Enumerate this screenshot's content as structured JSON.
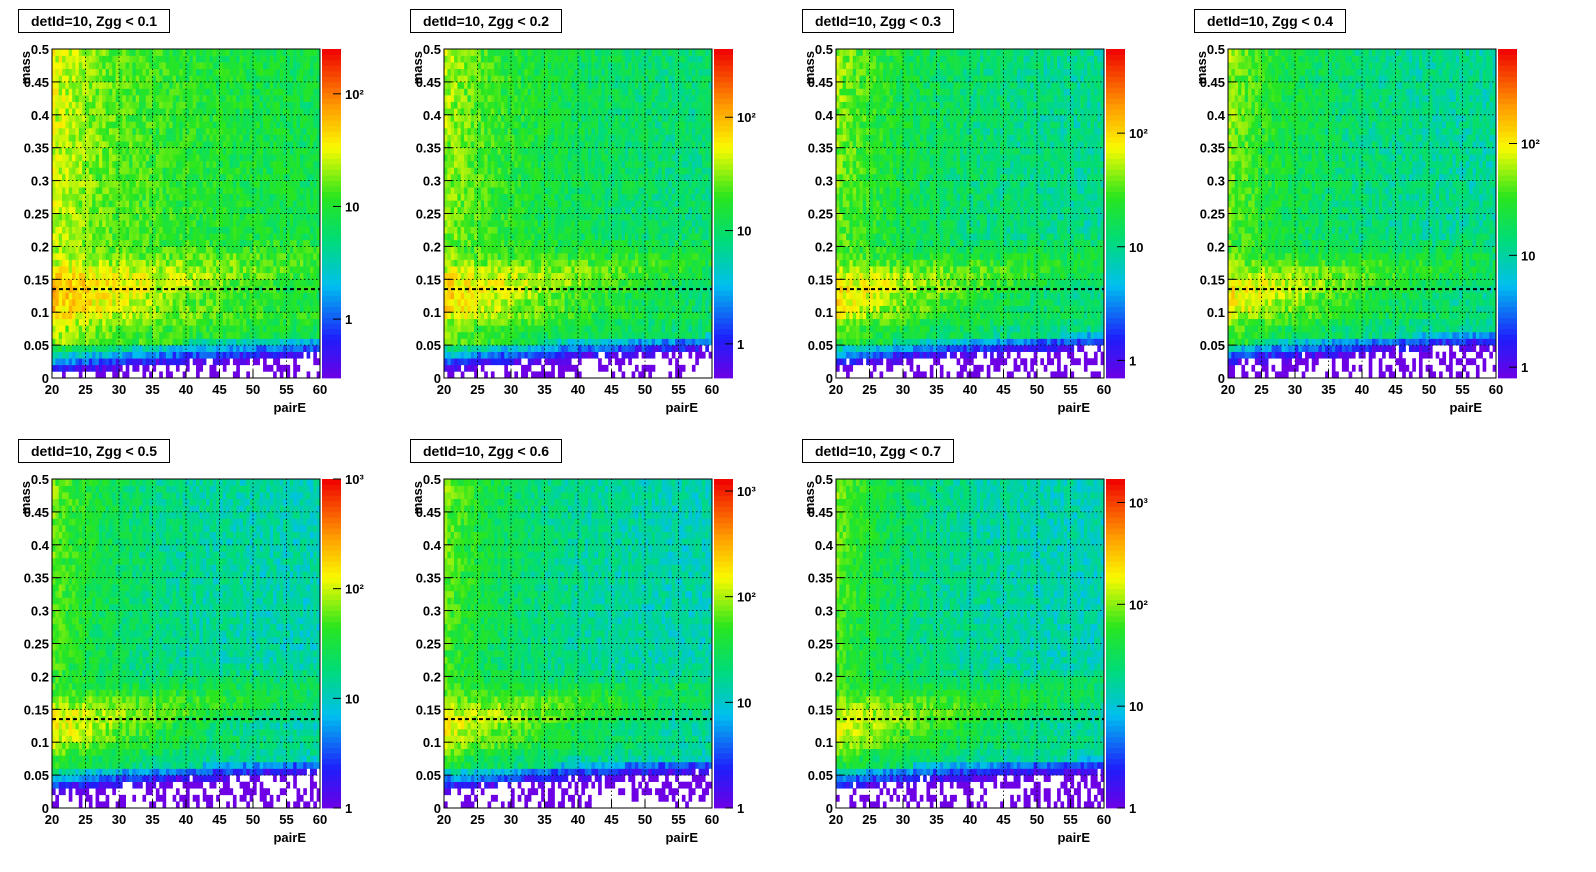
{
  "chart_data": [
    {
      "type": "heatmap",
      "title": "detId=10, Zgg < 0.1",
      "xlabel": "pairE",
      "ylabel": "mass",
      "xlim": [
        20,
        60
      ],
      "ylim": [
        0,
        0.5
      ],
      "xticks": [
        "20",
        "25",
        "30",
        "35",
        "40",
        "45",
        "50",
        "55",
        "60"
      ],
      "yticks": [
        "0",
        "0.05",
        "0.1",
        "0.15",
        "0.2",
        "0.25",
        "0.3",
        "0.35",
        "0.4",
        "0.45",
        "0.5"
      ],
      "colorbar": {
        "scale": "log",
        "min": 0.3,
        "max": 250,
        "ticks": [
          {
            "value": 1,
            "label": "1"
          },
          {
            "value": 10,
            "label": "10"
          },
          {
            "value": 100,
            "label": "10²"
          }
        ]
      },
      "reference_line": {
        "y": 0.135,
        "style": "dashed"
      },
      "grid": true,
      "zgg_cut": 0.1
    },
    {
      "type": "heatmap",
      "title": "detId=10, Zgg < 0.2",
      "xlabel": "pairE",
      "ylabel": "mass",
      "xlim": [
        20,
        60
      ],
      "ylim": [
        0,
        0.5
      ],
      "xticks": [
        "20",
        "25",
        "30",
        "35",
        "40",
        "45",
        "50",
        "55",
        "60"
      ],
      "yticks": [
        "0",
        "0.05",
        "0.1",
        "0.15",
        "0.2",
        "0.25",
        "0.3",
        "0.35",
        "0.4",
        "0.45",
        "0.5"
      ],
      "colorbar": {
        "scale": "log",
        "min": 0.5,
        "max": 400,
        "ticks": [
          {
            "value": 1,
            "label": "1"
          },
          {
            "value": 10,
            "label": "10"
          },
          {
            "value": 100,
            "label": "10²"
          }
        ]
      },
      "reference_line": {
        "y": 0.135,
        "style": "dashed"
      },
      "grid": true,
      "zgg_cut": 0.2
    },
    {
      "type": "heatmap",
      "title": "detId=10, Zgg < 0.3",
      "xlabel": "pairE",
      "ylabel": "mass",
      "xlim": [
        20,
        60
      ],
      "ylim": [
        0,
        0.5
      ],
      "xticks": [
        "20",
        "25",
        "30",
        "35",
        "40",
        "45",
        "50",
        "55",
        "60"
      ],
      "yticks": [
        "0",
        "0.05",
        "0.1",
        "0.15",
        "0.2",
        "0.25",
        "0.3",
        "0.35",
        "0.4",
        "0.45",
        "0.5"
      ],
      "colorbar": {
        "scale": "log",
        "min": 0.7,
        "max": 550,
        "ticks": [
          {
            "value": 1,
            "label": "1"
          },
          {
            "value": 10,
            "label": "10"
          },
          {
            "value": 100,
            "label": "10²"
          }
        ]
      },
      "reference_line": {
        "y": 0.135,
        "style": "dashed"
      },
      "grid": true,
      "zgg_cut": 0.3
    },
    {
      "type": "heatmap",
      "title": "detId=10, Zgg < 0.4",
      "xlabel": "pairE",
      "ylabel": "mass",
      "xlim": [
        20,
        60
      ],
      "ylim": [
        0,
        0.5
      ],
      "xticks": [
        "20",
        "25",
        "30",
        "35",
        "40",
        "45",
        "50",
        "55",
        "60"
      ],
      "yticks": [
        "0",
        "0.05",
        "0.1",
        "0.15",
        "0.2",
        "0.25",
        "0.3",
        "0.35",
        "0.4",
        "0.45",
        "0.5"
      ],
      "colorbar": {
        "scale": "log",
        "min": 0.8,
        "max": 700,
        "ticks": [
          {
            "value": 1,
            "label": "1"
          },
          {
            "value": 10,
            "label": "10"
          },
          {
            "value": 100,
            "label": "10²"
          }
        ]
      },
      "reference_line": {
        "y": 0.135,
        "style": "dashed"
      },
      "grid": true,
      "zgg_cut": 0.4
    },
    {
      "type": "heatmap",
      "title": "detId=10, Zgg < 0.5",
      "xlabel": "pairE",
      "ylabel": "mass",
      "xlim": [
        20,
        60
      ],
      "ylim": [
        0,
        0.5
      ],
      "xticks": [
        "20",
        "25",
        "30",
        "35",
        "40",
        "45",
        "50",
        "55",
        "60"
      ],
      "yticks": [
        "0",
        "0.05",
        "0.1",
        "0.15",
        "0.2",
        "0.25",
        "0.3",
        "0.35",
        "0.4",
        "0.45",
        "0.5"
      ],
      "colorbar": {
        "scale": "log",
        "min": 1,
        "max": 1000,
        "ticks": [
          {
            "value": 1,
            "label": "1"
          },
          {
            "value": 10,
            "label": "10"
          },
          {
            "value": 100,
            "label": "10²"
          },
          {
            "value": 1000,
            "label": "10³"
          }
        ]
      },
      "reference_line": {
        "y": 0.135,
        "style": "dashed"
      },
      "grid": true,
      "zgg_cut": 0.5
    },
    {
      "type": "heatmap",
      "title": "detId=10, Zgg < 0.6",
      "xlabel": "pairE",
      "ylabel": "mass",
      "xlim": [
        20,
        60
      ],
      "ylim": [
        0,
        0.5
      ],
      "xticks": [
        "20",
        "25",
        "30",
        "35",
        "40",
        "45",
        "50",
        "55",
        "60"
      ],
      "yticks": [
        "0",
        "0.05",
        "0.1",
        "0.15",
        "0.2",
        "0.25",
        "0.3",
        "0.35",
        "0.4",
        "0.45",
        "0.5"
      ],
      "colorbar": {
        "scale": "log",
        "min": 1,
        "max": 1300,
        "ticks": [
          {
            "value": 1,
            "label": "1"
          },
          {
            "value": 10,
            "label": "10"
          },
          {
            "value": 100,
            "label": "10²"
          },
          {
            "value": 1000,
            "label": "10³"
          }
        ]
      },
      "reference_line": {
        "y": 0.135,
        "style": "dashed"
      },
      "grid": true,
      "zgg_cut": 0.6
    },
    {
      "type": "heatmap",
      "title": "detId=10, Zgg < 0.7",
      "xlabel": "pairE",
      "ylabel": "mass",
      "xlim": [
        20,
        60
      ],
      "ylim": [
        0,
        0.5
      ],
      "xticks": [
        "20",
        "25",
        "30",
        "35",
        "40",
        "45",
        "50",
        "55",
        "60"
      ],
      "yticks": [
        "0",
        "0.05",
        "0.1",
        "0.15",
        "0.2",
        "0.25",
        "0.3",
        "0.35",
        "0.4",
        "0.45",
        "0.5"
      ],
      "colorbar": {
        "scale": "log",
        "min": 1,
        "max": 1700,
        "ticks": [
          {
            "value": 1,
            "label": "1"
          },
          {
            "value": 10,
            "label": "10"
          },
          {
            "value": 100,
            "label": "10²"
          },
          {
            "value": 1000,
            "label": "10³"
          }
        ]
      },
      "reference_line": {
        "y": 0.135,
        "style": "dashed"
      },
      "grid": true,
      "zgg_cut": 0.7
    }
  ]
}
